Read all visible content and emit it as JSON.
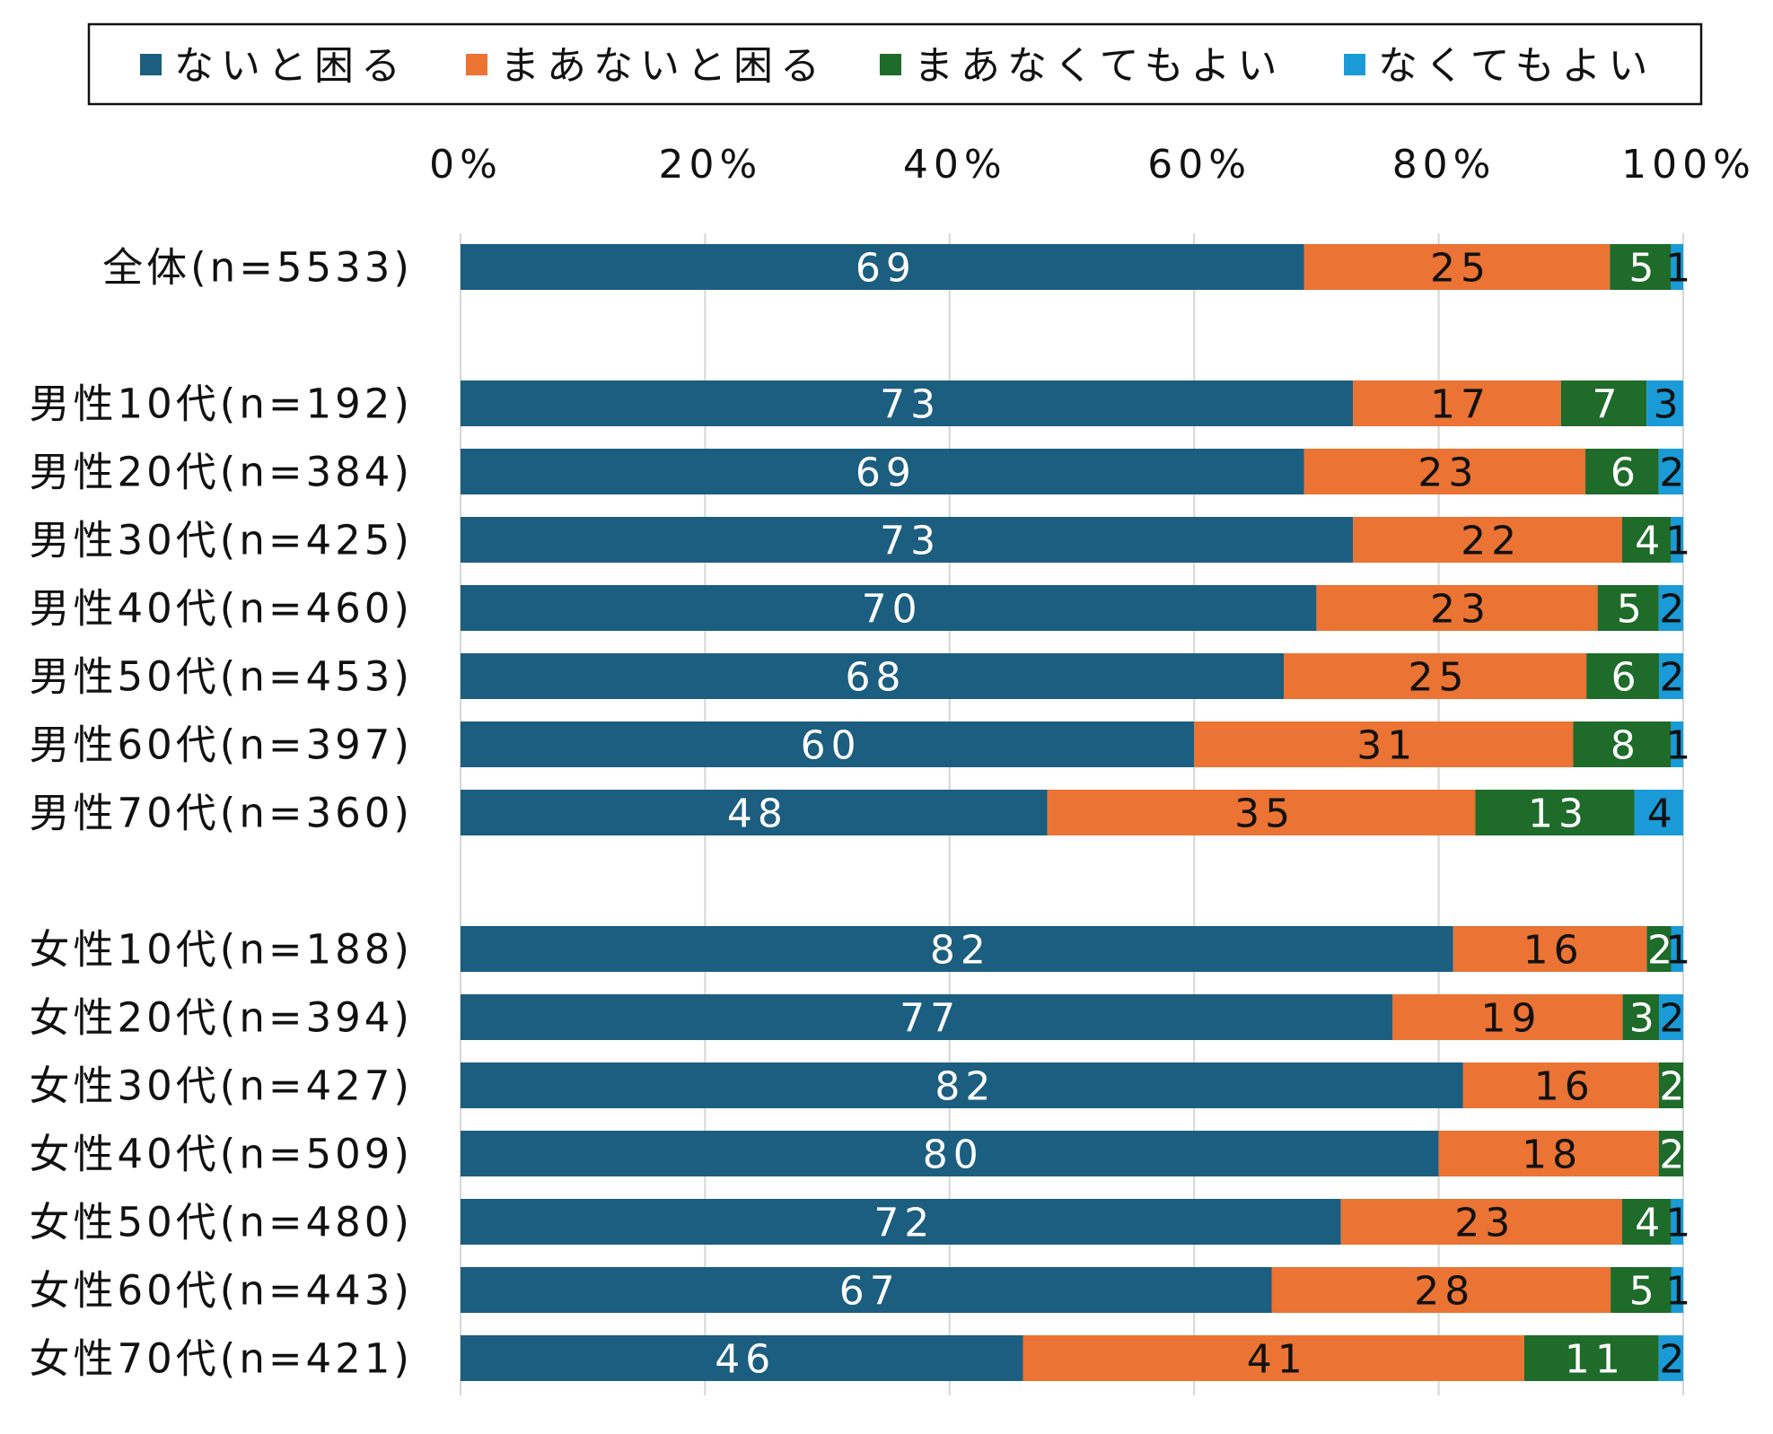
{
  "chart_data": {
    "type": "bar",
    "orientation": "horizontal",
    "stacked": "percent",
    "title": "",
    "xlabel": "",
    "ylabel": "",
    "xlim": [
      0,
      100
    ],
    "x_ticks": [
      "0%",
      "20%",
      "40%",
      "60%",
      "80%",
      "100%"
    ],
    "grid": true,
    "legend_position": "top",
    "categories": [
      "全体(n=5533)",
      "男性10代(n=192)",
      "男性20代(n=384)",
      "男性30代(n=425)",
      "男性40代(n=460)",
      "男性50代(n=453)",
      "男性60代(n=397)",
      "男性70代(n=360)",
      "女性10代(n=188)",
      "女性20代(n=394)",
      "女性30代(n=427)",
      "女性40代(n=509)",
      "女性50代(n=480)",
      "女性60代(n=443)",
      "女性70代(n=421)"
    ],
    "group_gap_after": [
      0,
      7
    ],
    "series": [
      {
        "name": "ないと困る",
        "color": "#1b5e80",
        "label_color": "#ffffff",
        "values": [
          69,
          73,
          69,
          73,
          70,
          68,
          60,
          48,
          82,
          77,
          82,
          80,
          72,
          67,
          46
        ]
      },
      {
        "name": "まあないと困る",
        "color": "#eb7333",
        "label_color": "#111111",
        "values": [
          25,
          17,
          23,
          22,
          23,
          25,
          31,
          35,
          16,
          19,
          16,
          18,
          23,
          28,
          41
        ]
      },
      {
        "name": "まあなくてもよい",
        "color": "#1e6b2a",
        "label_color": "#ffffff",
        "values": [
          5,
          7,
          6,
          4,
          5,
          6,
          8,
          13,
          2,
          3,
          2,
          2,
          4,
          5,
          11
        ]
      },
      {
        "name": "なくてもよい",
        "color": "#1a9ad6",
        "label_color": "#111111",
        "values": [
          1,
          3,
          2,
          1,
          2,
          2,
          1,
          4,
          1,
          2,
          0,
          0,
          1,
          1,
          2
        ]
      }
    ]
  }
}
